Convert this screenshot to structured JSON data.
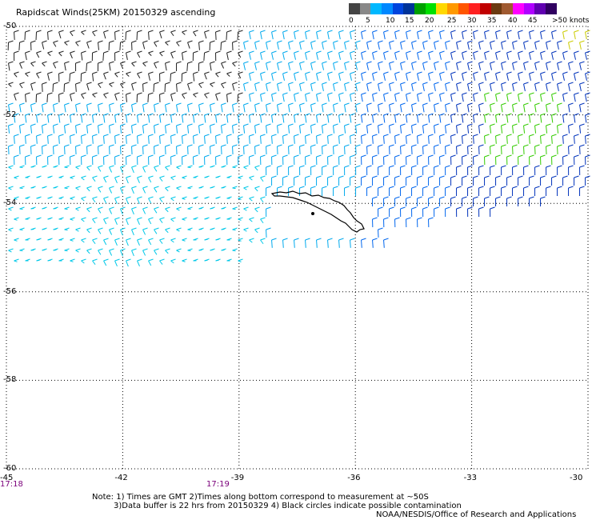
{
  "title": "Rapidscat Winds(25KM) 20150329 ascending",
  "legend": {
    "colors": [
      "#444444",
      "#888888",
      "#00b8ff",
      "#0088ff",
      "#0044dd",
      "#003399",
      "#00a000",
      "#00e000",
      "#ffd800",
      "#ff9900",
      "#ff5500",
      "#ff2020",
      "#c00000",
      "#6b3a10",
      "#a05a30",
      "#ff00ff",
      "#b000ff",
      "#6000b0",
      "#300060"
    ],
    "labels": [
      "0",
      "5",
      "10",
      "15",
      "20",
      "25",
      "30",
      "35",
      "40",
      "45",
      ">50 knots"
    ]
  },
  "map": {
    "lat_labels": [
      "-50",
      "-52",
      "-54",
      "-56",
      "-58",
      "-60"
    ],
    "lon_labels": [
      "-45",
      "-42",
      "-39",
      "-36",
      "-33",
      "-30"
    ],
    "lat_range": [
      -60,
      -50
    ],
    "lon_range": [
      -45,
      -30
    ]
  },
  "times": {
    "t1": "17:18",
    "t2": "17:19"
  },
  "notes": {
    "line1": "Note: 1) Times are GMT 2)Times along bottom correspond to measurement at ~50S",
    "line2": "3)Data buffer is 22 hrs from 20150329 4) Black circles indicate possible contamination",
    "line3": "NOAA/NESDIS/Office of Research and Applications"
  }
}
